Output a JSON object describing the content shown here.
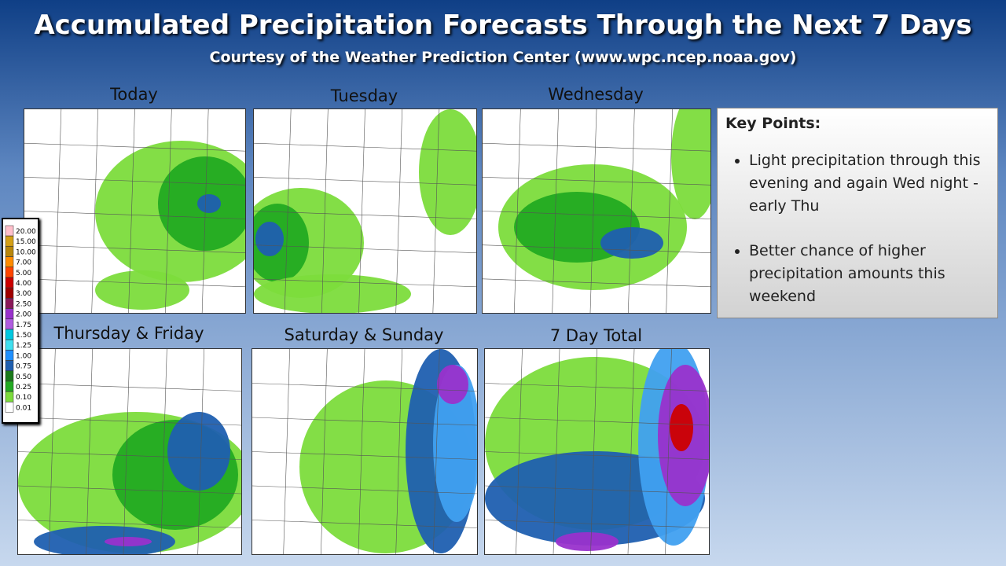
{
  "header": {
    "title": "Accumulated Precipitation Forecasts Through the Next 7 Days",
    "subtitle": "Courtesy of the Weather Prediction Center (www.wpc.ncep.noaa.gov)"
  },
  "panels": [
    {
      "label": "Today"
    },
    {
      "label": "Tuesday"
    },
    {
      "label": "Wednesday"
    },
    {
      "label": "Thursday & Friday"
    },
    {
      "label": "Saturday & Sunday"
    },
    {
      "label": "7 Day Total"
    }
  ],
  "legend": {
    "items": [
      {
        "label": "20.00",
        "color": "#ffc0cb"
      },
      {
        "label": "15.00",
        "color": "#d4a017"
      },
      {
        "label": "10.00",
        "color": "#b8860b"
      },
      {
        "label": "7.00",
        "color": "#ff8c00"
      },
      {
        "label": "5.00",
        "color": "#ff4500"
      },
      {
        "label": "4.00",
        "color": "#cc0000"
      },
      {
        "label": "3.00",
        "color": "#a00000"
      },
      {
        "label": "2.50",
        "color": "#8b1a5a"
      },
      {
        "label": "2.00",
        "color": "#9932cc"
      },
      {
        "label": "1.75",
        "color": "#b05ce0"
      },
      {
        "label": "1.50",
        "color": "#00c8e0"
      },
      {
        "label": "1.25",
        "color": "#40e0f0"
      },
      {
        "label": "1.00",
        "color": "#1e90ff"
      },
      {
        "label": "0.75",
        "color": "#1f5fb0"
      },
      {
        "label": "0.50",
        "color": "#1a7a1a"
      },
      {
        "label": "0.25",
        "color": "#22aa22"
      },
      {
        "label": "0.10",
        "color": "#7cdc3c"
      },
      {
        "label": "0.01",
        "color": "#ffffff"
      }
    ]
  },
  "key_points": {
    "heading": "Key Points:",
    "bullets": [
      "Light precipitation through this evening and again Wed night - early Thu",
      "Better chance of higher precipitation amounts this weekend"
    ]
  }
}
